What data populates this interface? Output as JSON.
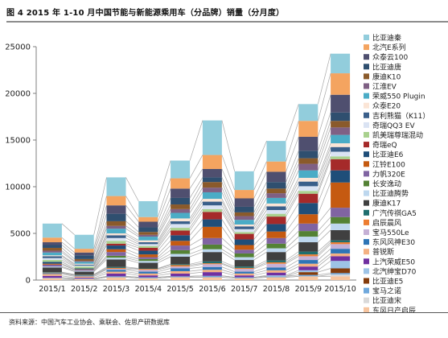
{
  "title": "图 4  2015 年 1-10 月中国节能与新能源乘用车（分品牌）销量（分月度）",
  "source": "资料来源：中国汽车工业协会、乘联会、佐思产研数据库",
  "chart_data": {
    "type": "bar",
    "stacked": true,
    "categories": [
      "2015/1",
      "2015/2",
      "2015/3",
      "2015/4",
      "2015/5",
      "2015/6",
      "2015/7",
      "2015/8",
      "2015/9",
      "2015/10"
    ],
    "ylim": [
      0,
      25000
    ],
    "yticks": [
      0,
      5000,
      10000,
      15000,
      20000,
      25000
    ],
    "grid": false,
    "legend_position": "right",
    "connector_lines": true,
    "series": [
      {
        "name": "东风日产启辰",
        "color": "#f7c59f",
        "values": [
          200,
          100,
          300,
          200,
          300,
          300,
          200,
          300,
          400,
          400
        ]
      },
      {
        "name": "比亚迪宋",
        "color": "#d9d9d9",
        "values": [
          0,
          0,
          0,
          0,
          0,
          0,
          0,
          0,
          0,
          200
        ]
      },
      {
        "name": "宝马之诺",
        "color": "#6fa8dc",
        "values": [
          50,
          50,
          100,
          100,
          100,
          150,
          100,
          100,
          150,
          150
        ]
      },
      {
        "name": "比亚迪E5",
        "color": "#843c0c",
        "values": [
          0,
          0,
          0,
          0,
          0,
          0,
          0,
          0,
          300,
          500
        ]
      },
      {
        "name": "北汽绅宝D70",
        "color": "#9dc3e6",
        "values": [
          0,
          0,
          0,
          0,
          0,
          0,
          0,
          100,
          200,
          800
        ]
      },
      {
        "name": "上汽荣威E50",
        "color": "#7030a0",
        "values": [
          200,
          100,
          300,
          200,
          300,
          400,
          200,
          300,
          400,
          500
        ]
      },
      {
        "name": "普锐斯",
        "color": "#f4b183",
        "values": [
          200,
          150,
          200,
          200,
          250,
          250,
          200,
          250,
          300,
          300
        ]
      },
      {
        "name": "东风风神E30",
        "color": "#2e75b6",
        "values": [
          100,
          100,
          200,
          200,
          300,
          300,
          200,
          300,
          400,
          500
        ]
      },
      {
        "name": "宝马550Le",
        "color": "#c5b0d5",
        "values": [
          0,
          0,
          100,
          200,
          200,
          300,
          300,
          400,
          400,
          500
        ]
      },
      {
        "name": "启辰晨风",
        "color": "#ed7d31",
        "values": [
          50,
          50,
          100,
          100,
          150,
          100,
          100,
          150,
          200,
          200
        ]
      },
      {
        "name": "广汽传祺GA5",
        "color": "#1f6e6e",
        "values": [
          50,
          50,
          100,
          50,
          100,
          200,
          150,
          200,
          300,
          200
        ]
      },
      {
        "name": "康迪K17",
        "color": "#404040",
        "values": [
          500,
          300,
          800,
          600,
          800,
          1000,
          700,
          900,
          1000,
          1100
        ]
      },
      {
        "name": "比亚迪腾势",
        "color": "#bdd7ee",
        "values": [
          100,
          100,
          200,
          200,
          300,
          300,
          300,
          400,
          600,
          700
        ]
      },
      {
        "name": "长安逸动",
        "color": "#548235",
        "values": [
          0,
          0,
          200,
          200,
          400,
          500,
          400,
          500,
          600,
          700
        ]
      },
      {
        "name": "力帆320E",
        "color": "#8064a2",
        "values": [
          200,
          100,
          400,
          200,
          500,
          700,
          400,
          600,
          800,
          1000
        ]
      },
      {
        "name": "江铃E100",
        "color": "#c55a11",
        "values": [
          100,
          50,
          300,
          300,
          500,
          1200,
          500,
          700,
          1000,
          2700
        ]
      },
      {
        "name": "比亚迪E6",
        "color": "#1f4e79",
        "values": [
          200,
          100,
          400,
          400,
          600,
          800,
          600,
          800,
          1200,
          1300
        ]
      },
      {
        "name": "奇瑞eQ",
        "color": "#a52a2a",
        "values": [
          0,
          0,
          200,
          300,
          500,
          800,
          600,
          800,
          1000,
          1200
        ]
      },
      {
        "name": "凯美瑞尊瑞混动",
        "color": "#a9d18e",
        "values": [
          200,
          200,
          300,
          200,
          300,
          300,
          200,
          300,
          300,
          300
        ]
      },
      {
        "name": "奇瑞QQ3 EV",
        "color": "#dae3f3",
        "values": [
          200,
          100,
          300,
          200,
          400,
          400,
          300,
          400,
          500,
          500
        ]
      },
      {
        "name": "吉利熊猫（K11）",
        "color": "#3a5f8a",
        "values": [
          200,
          100,
          300,
          200,
          300,
          400,
          300,
          400,
          500,
          500
        ]
      },
      {
        "name": "众泰E20",
        "color": "#fbe5d6",
        "values": [
          100,
          100,
          200,
          200,
          300,
          300,
          200,
          300,
          400,
          400
        ]
      },
      {
        "name": "荣威550 Plugin",
        "color": "#4bacc6",
        "values": [
          300,
          200,
          500,
          400,
          600,
          700,
          500,
          600,
          800,
          900
        ]
      },
      {
        "name": "江淮EV",
        "color": "#7f6084",
        "values": [
          200,
          100,
          300,
          200,
          400,
          500,
          400,
          500,
          700,
          800
        ]
      },
      {
        "name": "康迪K10",
        "color": "#8a5a2b",
        "values": [
          300,
          200,
          500,
          300,
          500,
          600,
          400,
          500,
          600,
          700
        ]
      },
      {
        "name": "比亚迪唐",
        "color": "#2f4f6f",
        "values": [
          300,
          400,
          800,
          500,
          700,
          500,
          600,
          700,
          800,
          900
        ]
      },
      {
        "name": "众泰云100",
        "color": "#4f4f6f",
        "values": [
          300,
          300,
          900,
          600,
          1000,
          900,
          900,
          1100,
          1500,
          1900
        ]
      },
      {
        "name": "北汽E系列",
        "color": "#f4a460",
        "values": [
          500,
          400,
          1000,
          500,
          1100,
          1500,
          900,
          1100,
          1700,
          2300
        ]
      },
      {
        "name": "比亚迪秦",
        "color": "#92cddc",
        "values": [
          1500,
          1500,
          2000,
          1700,
          1900,
          3700,
          2000,
          2200,
          1800,
          2100
        ]
      }
    ]
  }
}
